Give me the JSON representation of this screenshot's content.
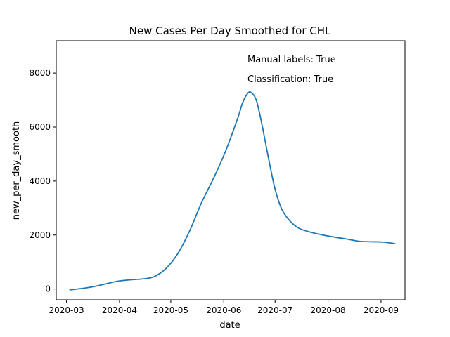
{
  "chart_data": {
    "type": "line",
    "title": "New Cases Per Day Smoothed for CHL",
    "xlabel": "date",
    "ylabel": "new_per_day_smooth",
    "ylim": [
      -400,
      9200
    ],
    "xlim": [
      "2020-02-24",
      "2020-09-15"
    ],
    "grid": false,
    "colors": {
      "line": "#1f77b4",
      "axes": "#000000",
      "background": "#ffffff"
    },
    "x_ticks": [
      {
        "date": "2020-03-01",
        "label": "2020-03"
      },
      {
        "date": "2020-04-01",
        "label": "2020-04"
      },
      {
        "date": "2020-05-01",
        "label": "2020-05"
      },
      {
        "date": "2020-06-01",
        "label": "2020-06"
      },
      {
        "date": "2020-07-01",
        "label": "2020-07"
      },
      {
        "date": "2020-08-01",
        "label": "2020-08"
      },
      {
        "date": "2020-09-01",
        "label": "2020-09"
      }
    ],
    "y_ticks": [
      {
        "value": 0,
        "label": "0"
      },
      {
        "value": 2000,
        "label": "2000"
      },
      {
        "value": 4000,
        "label": "4000"
      },
      {
        "value": 6000,
        "label": "6000"
      },
      {
        "value": 8000,
        "label": "8000"
      }
    ],
    "annotations": [
      "Manual labels: True",
      "Classification: True"
    ],
    "series": [
      {
        "x": [
          "2020-03-03",
          "2020-03-10",
          "2020-03-17",
          "2020-03-24",
          "2020-03-31",
          "2020-04-07",
          "2020-04-14",
          "2020-04-21",
          "2020-04-28",
          "2020-05-05",
          "2020-05-12",
          "2020-05-19",
          "2020-05-26",
          "2020-06-02",
          "2020-06-09",
          "2020-06-12",
          "2020-06-15",
          "2020-06-17",
          "2020-06-20",
          "2020-06-23",
          "2020-06-27",
          "2020-07-01",
          "2020-07-05",
          "2020-07-10",
          "2020-07-15",
          "2020-07-22",
          "2020-07-29",
          "2020-08-05",
          "2020-08-12",
          "2020-08-19",
          "2020-08-26",
          "2020-09-02",
          "2020-09-09"
        ],
        "y": [
          -30,
          20,
          90,
          190,
          290,
          340,
          370,
          450,
          750,
          1300,
          2150,
          3200,
          4100,
          5100,
          6300,
          6900,
          7250,
          7280,
          7000,
          6200,
          4900,
          3700,
          2950,
          2500,
          2250,
          2100,
          2000,
          1920,
          1850,
          1770,
          1750,
          1740,
          1680
        ]
      }
    ]
  }
}
